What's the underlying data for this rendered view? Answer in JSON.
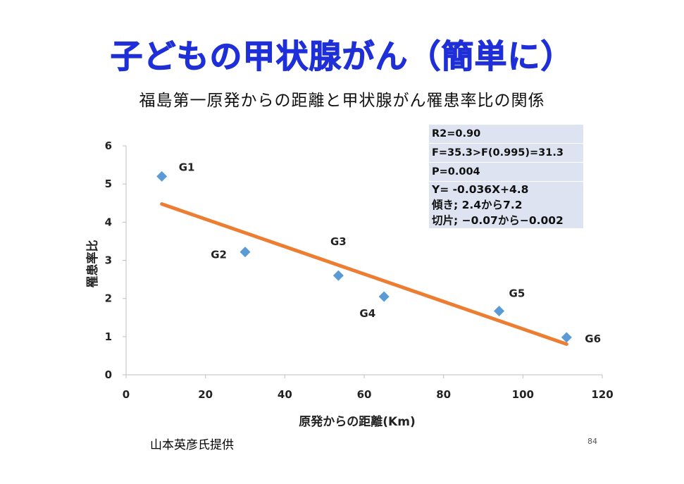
{
  "slide": {
    "title": "子どもの甲状腺がん（簡単に）",
    "subtitle": "福島第一原発からの距離と甲状腺がん罹患率比の関係",
    "credit": "山本英彦氏提供",
    "page_number": "84"
  },
  "stats": [
    "R2=0.90",
    "F=35.3>F(0.995)=31.3",
    "P=0.004",
    "Y=   -0.036X+4.8",
    "傾き;  2.4から7.2",
    "切片;  −0.07から−0.002"
  ],
  "chart_data": {
    "type": "scatter",
    "xlabel": "原発からの距離(Km)",
    "ylabel": "罹患率比",
    "xlim": [
      0,
      120
    ],
    "ylim": [
      0,
      6
    ],
    "xticks": [
      0,
      20,
      40,
      60,
      80,
      100,
      120
    ],
    "yticks": [
      0,
      1,
      2,
      3,
      4,
      5,
      6
    ],
    "grid": false,
    "points": [
      {
        "label": "G1",
        "x": 9,
        "y": 5.2
      },
      {
        "label": "G2",
        "x": 30,
        "y": 3.22
      },
      {
        "label": "G3",
        "x": 53.5,
        "y": 2.6
      },
      {
        "label": "G4",
        "x": 65,
        "y": 2.05
      },
      {
        "label": "G5",
        "x": 94,
        "y": 1.67
      },
      {
        "label": "G6",
        "x": 111,
        "y": 0.98
      }
    ],
    "trendline": {
      "slope": -0.036,
      "intercept": 4.8,
      "x_range": [
        9,
        111
      ]
    },
    "colors": {
      "marker": "#5b9bd5",
      "trendline": "#ed7d31",
      "axis": "#bfbfbf"
    }
  }
}
